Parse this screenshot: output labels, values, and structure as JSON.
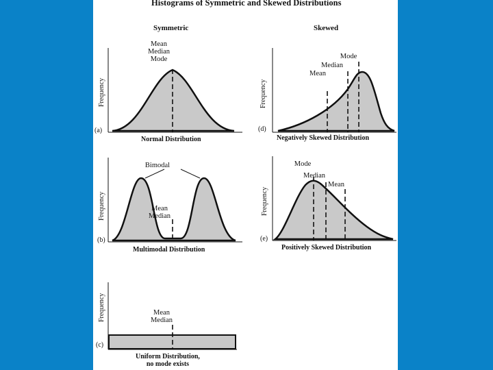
{
  "figure": {
    "title": "Histograms of Symmetric and Skewed Distributions",
    "column_symmetric": "Symmetric",
    "column_skewed": "Skewed",
    "y_label": "Frequency"
  },
  "panels": {
    "a": {
      "tag": "(a)",
      "caption": "Normal Distribution",
      "marker_lines": [
        "Mean",
        "Median",
        "Mode"
      ]
    },
    "b": {
      "tag": "(b)",
      "caption": "Multimodal Distribution",
      "peaks_label": "Bimodal",
      "center_lines": [
        "Mean",
        "Median"
      ]
    },
    "c": {
      "tag": "(c)",
      "caption_lines": [
        "Uniform Distribution,",
        "no mode exists"
      ],
      "center_lines": [
        "Mean",
        "Median"
      ]
    },
    "d": {
      "tag": "(d)",
      "caption": "Negatively Skewed Distribution",
      "mean_label": "Mean",
      "median_label": "Median",
      "mode_label": "Mode"
    },
    "e": {
      "tag": "(e)",
      "caption": "Positively Skewed Distribution",
      "mode_label": "Mode",
      "median_label": "Median",
      "mean_label": "Mean"
    }
  },
  "colors": {
    "background": "#0a82c8",
    "page": "#ffffff",
    "fill": "#c9c9c9",
    "ink": "#111111"
  }
}
